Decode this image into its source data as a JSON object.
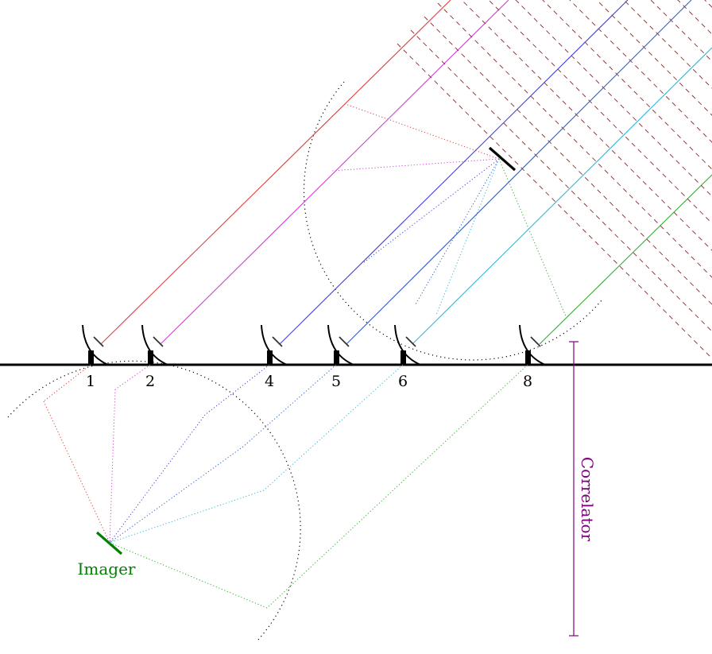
{
  "antennas": [
    {
      "label": "1",
      "color": "#e04040"
    },
    {
      "label": "2",
      "color": "#cc44cc"
    },
    {
      "label": "4",
      "color": "#4040e0"
    },
    {
      "label": "5",
      "color": "#3060c8"
    },
    {
      "label": "6",
      "color": "#30b8d8"
    },
    {
      "label": "8",
      "color": "#30b030"
    }
  ],
  "imager": {
    "label": "Imager",
    "color": "#008000"
  },
  "correlator": {
    "label": "Correlator",
    "color": "#800080"
  },
  "wavefront_color": "#b03030"
}
